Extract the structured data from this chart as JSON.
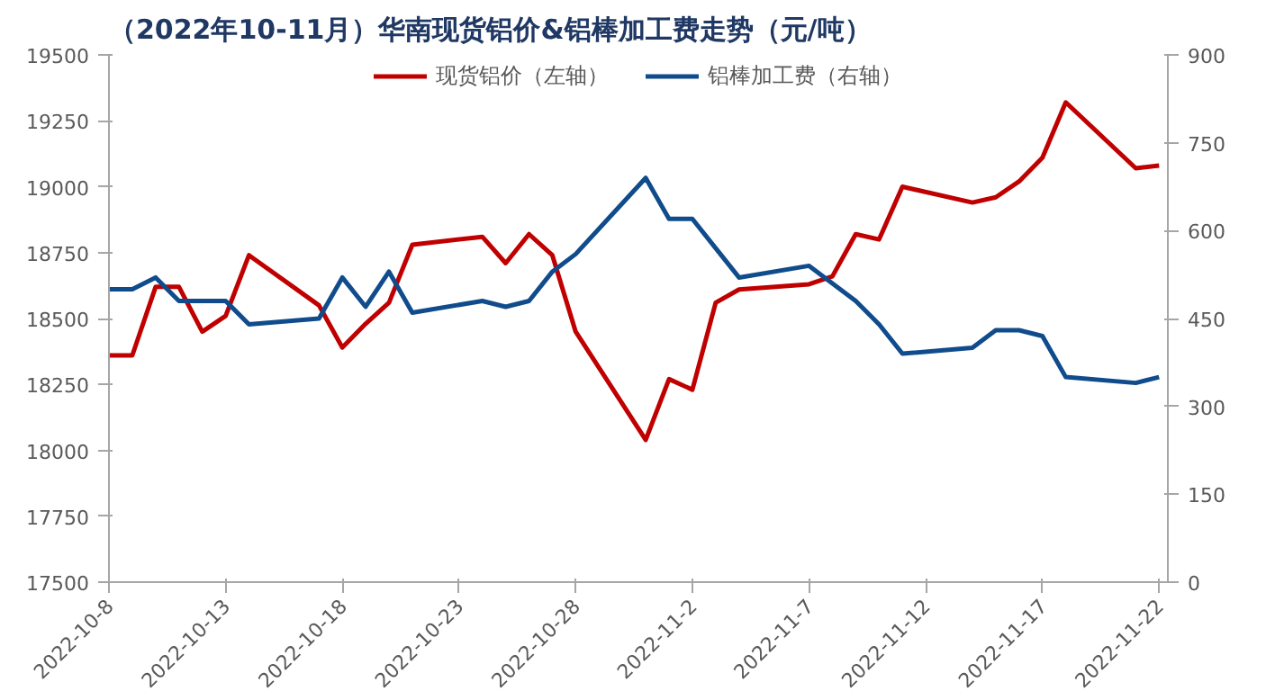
{
  "chart_data": {
    "type": "line",
    "title": "（2022年10-11月）华南现货铝价&铝棒加工费走势（元/吨）",
    "x": [
      "2022-10-08",
      "2022-10-09",
      "2022-10-10",
      "2022-10-11",
      "2022-10-12",
      "2022-10-13",
      "2022-10-14",
      "2022-10-17",
      "2022-10-18",
      "2022-10-19",
      "2022-10-20",
      "2022-10-21",
      "2022-10-24",
      "2022-10-25",
      "2022-10-26",
      "2022-10-27",
      "2022-10-28",
      "2022-10-31",
      "2022-11-01",
      "2022-11-02",
      "2022-11-03",
      "2022-11-04",
      "2022-11-07",
      "2022-11-08",
      "2022-11-09",
      "2022-11-10",
      "2022-11-11",
      "2022-11-14",
      "2022-11-15",
      "2022-11-16",
      "2022-11-17",
      "2022-11-18",
      "2022-11-21",
      "2022-11-22"
    ],
    "series": [
      {
        "name": "现货铝价（左轴）",
        "color": "#c00000",
        "values": [
          18360,
          18360,
          18620,
          18620,
          18450,
          18510,
          18740,
          18550,
          18390,
          18480,
          18560,
          18780,
          18810,
          18710,
          18820,
          18740,
          18450,
          18040,
          18270,
          18230,
          18560,
          18610,
          18630,
          18660,
          18820,
          18800,
          19000,
          18940,
          18960,
          19020,
          19110,
          19320,
          19070,
          19080
        ]
      },
      {
        "name": "铝棒加工费（右轴）",
        "color": "#104c8c",
        "axis": "y2",
        "values": [
          500,
          500,
          520,
          480,
          480,
          480,
          440,
          450,
          520,
          470,
          530,
          460,
          480,
          470,
          480,
          530,
          560,
          690,
          620,
          620,
          570,
          520,
          540,
          510,
          480,
          440,
          390,
          400,
          430,
          430,
          420,
          350,
          340,
          350
        ]
      }
    ],
    "xlim": [
      "2022-10-08",
      "2022-11-22T09:00"
    ],
    "xticks": [
      {
        "value": "2022-10-08",
        "label": "2022-10-8"
      },
      {
        "value": "2022-10-13",
        "label": "2022-10-13"
      },
      {
        "value": "2022-10-18",
        "label": "2022-10-18"
      },
      {
        "value": "2022-10-23",
        "label": "2022-10-23"
      },
      {
        "value": "2022-10-28",
        "label": "2022-10-28"
      },
      {
        "value": "2022-11-02",
        "label": "2022-11-2"
      },
      {
        "value": "2022-11-07",
        "label": "2022-11-7"
      },
      {
        "value": "2022-11-12",
        "label": "2022-11-12"
      },
      {
        "value": "2022-11-17",
        "label": "2022-11-17"
      },
      {
        "value": "2022-11-22",
        "label": "2022-11-22"
      }
    ],
    "ylim": [
      17500,
      19500
    ],
    "yticks": [
      17500,
      17750,
      18000,
      18250,
      18500,
      18750,
      19000,
      19250,
      19500
    ],
    "y2lim": [
      0,
      900
    ],
    "y2ticks": [
      0,
      150,
      300,
      450,
      600,
      750,
      900
    ],
    "grid": false,
    "legend": "top",
    "line_style": "solid"
  }
}
